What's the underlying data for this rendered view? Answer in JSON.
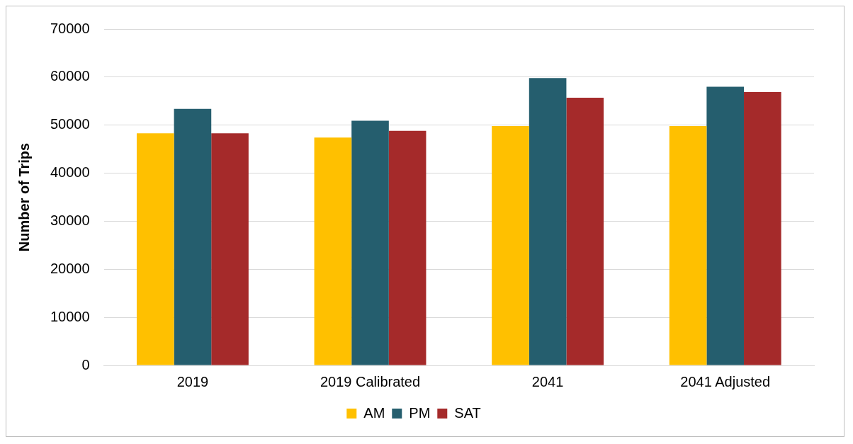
{
  "chart_data": {
    "type": "bar",
    "ylabel": "Number of Trips",
    "categories": [
      "2019",
      "2019 Calibrated",
      "2041",
      "2041 Adjusted"
    ],
    "series": [
      {
        "name": "AM",
        "color": "#ffc000",
        "values": [
          48300,
          47400,
          49800,
          49800
        ]
      },
      {
        "name": "PM",
        "color": "#255e6e",
        "values": [
          53400,
          50900,
          59800,
          58000
        ]
      },
      {
        "name": "SAT",
        "color": "#a52a2a",
        "values": [
          48300,
          48800,
          55700,
          56900
        ]
      }
    ],
    "ylim": [
      0,
      70000
    ],
    "yticks": [
      0,
      10000,
      20000,
      30000,
      40000,
      50000,
      60000,
      70000
    ],
    "grid": "y",
    "legend": "bottom"
  }
}
